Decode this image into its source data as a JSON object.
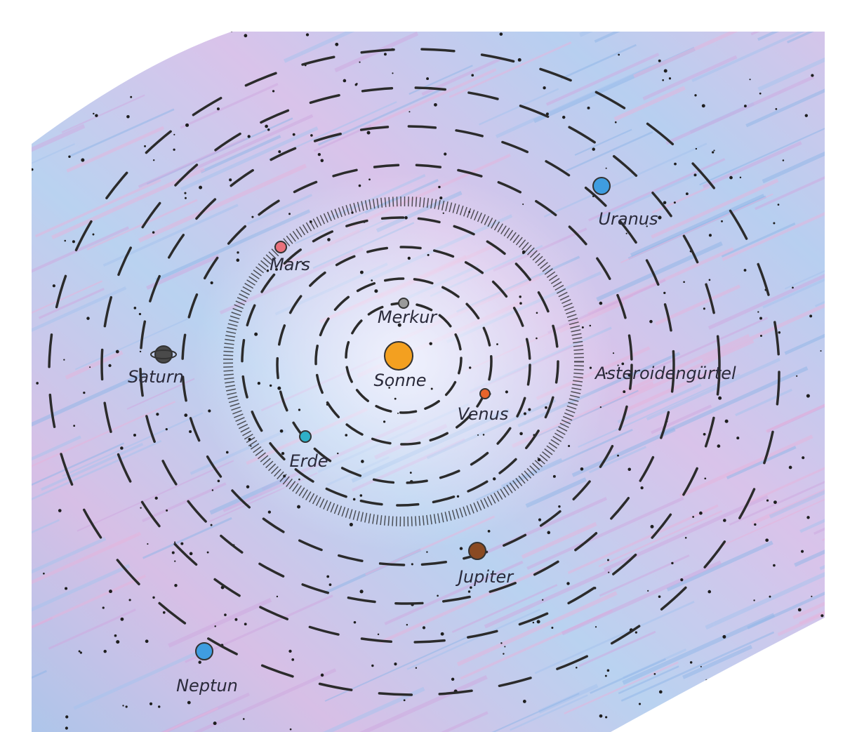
{
  "bodies": {
    "sun": {
      "label": "Sonne"
    },
    "mercury": {
      "label": "Merkur"
    },
    "venus": {
      "label": "Venus"
    },
    "earth": {
      "label": "Erde"
    },
    "mars": {
      "label": "Mars"
    },
    "asteroid_belt": {
      "label": "Asteroidengürtel"
    },
    "jupiter": {
      "label": "Jupiter"
    },
    "saturn": {
      "label": "Saturn"
    },
    "uranus": {
      "label": "Uranus"
    },
    "neptune": {
      "label": "Neptun"
    }
  }
}
